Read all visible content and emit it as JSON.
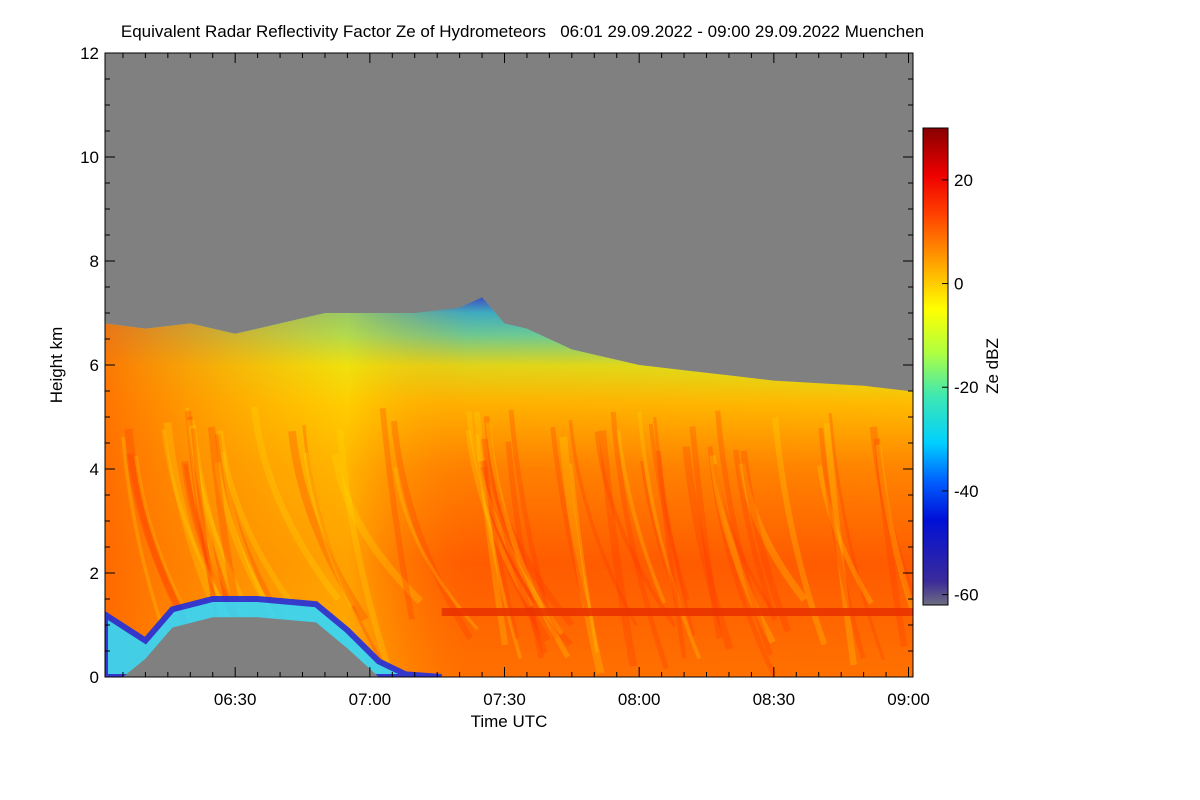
{
  "chart_data": {
    "type": "heatmap",
    "title": "Equivalent Radar Reflectivity Factor Ze of Hydrometeors   06:01 29.09.2022 - 09:00 29.09.2022 Muenchen",
    "xlabel": "Time UTC",
    "ylabel": "Height km",
    "x_range": [
      "06:01",
      "09:00"
    ],
    "y_range": [
      0,
      12
    ],
    "x_ticks": [
      "06:30",
      "07:00",
      "07:30",
      "08:00",
      "08:30",
      "09:00"
    ],
    "x_tick_minutes": [
      30,
      60,
      90,
      120,
      150,
      180
    ],
    "y_ticks": [
      0,
      2,
      4,
      6,
      8,
      10,
      12
    ],
    "colorbar": {
      "label": "Ze dBZ",
      "range": [
        -62,
        30
      ],
      "ticks": [
        -60,
        -40,
        -20,
        0,
        20
      ]
    },
    "no_data_color": "#808080",
    "cloud_top_km": [
      [
        1,
        6.8
      ],
      [
        10,
        6.7
      ],
      [
        20,
        6.8
      ],
      [
        30,
        6.6
      ],
      [
        40,
        6.8
      ],
      [
        50,
        7.0
      ],
      [
        60,
        7.0
      ],
      [
        70,
        7.0
      ],
      [
        80,
        7.1
      ],
      [
        85,
        7.3
      ],
      [
        90,
        6.8
      ],
      [
        95,
        6.7
      ],
      [
        100,
        6.5
      ],
      [
        105,
        6.3
      ],
      [
        110,
        6.2
      ],
      [
        120,
        6.0
      ],
      [
        130,
        5.9
      ],
      [
        140,
        5.8
      ],
      [
        150,
        5.7
      ],
      [
        160,
        5.65
      ],
      [
        170,
        5.6
      ],
      [
        180,
        5.5
      ]
    ],
    "bright_band_km": 1.25,
    "bright_band_start_min": 76,
    "lower_gap": {
      "start_min": 1,
      "end_min": 76,
      "top_km": [
        [
          1,
          1.2
        ],
        [
          10,
          0.7
        ],
        [
          16,
          1.3
        ],
        [
          25,
          1.5
        ],
        [
          35,
          1.5
        ],
        [
          48,
          1.4
        ],
        [
          55,
          0.9
        ],
        [
          62,
          0.3
        ],
        [
          68,
          0.05
        ],
        [
          76,
          0.0
        ]
      ]
    }
  }
}
